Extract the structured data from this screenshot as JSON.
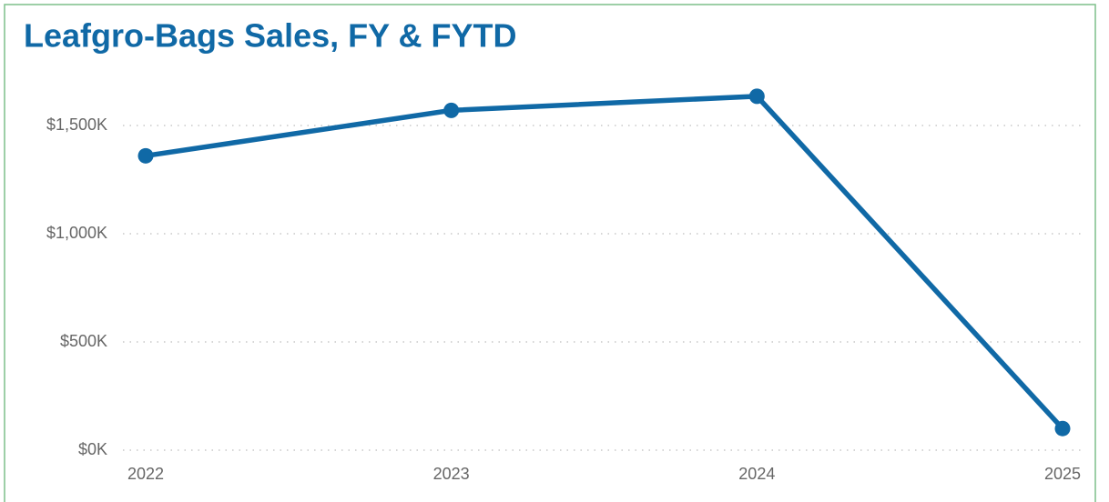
{
  "chart_data": {
    "type": "line",
    "title": "Leafgro-Bags Sales, FY & FYTD",
    "categories": [
      "2022",
      "2023",
      "2024",
      "2025"
    ],
    "series": [
      {
        "name": "Sales",
        "color": "#1069a6",
        "values": [
          1360,
          1570,
          1635,
          100
        ]
      }
    ],
    "ylim": [
      0,
      1700
    ],
    "yticks": [
      {
        "value": 0,
        "label": "$0K"
      },
      {
        "value": 500,
        "label": "$500K"
      },
      {
        "value": 1000,
        "label": "$1,000K"
      },
      {
        "value": 1500,
        "label": "$1,500K"
      }
    ],
    "grid": true
  }
}
